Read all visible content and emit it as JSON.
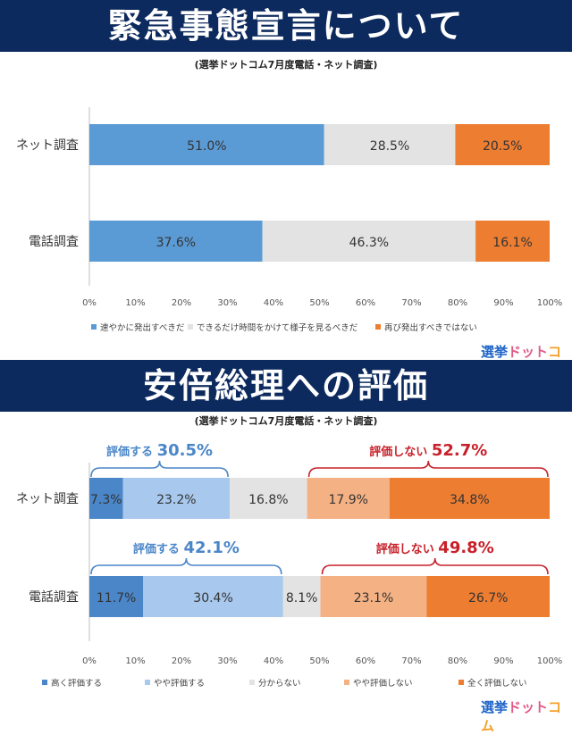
{
  "chart1": {
    "banner_title": "緊急事態宣言について",
    "subtitle": "(選挙ドットコム7月度電話・ネット調査)",
    "chart_data": {
      "type": "bar",
      "stacked": true,
      "orientation": "horizontal",
      "categories": [
        "ネット調査",
        "電話調査"
      ],
      "series": [
        {
          "name": "速やかに発出すべきだ",
          "color": "#5b9bd5",
          "values": [
            51.0,
            37.6
          ]
        },
        {
          "name": "できるだけ時間をかけて様子を見るべきだ",
          "color": "#e3e3e3",
          "values": [
            28.5,
            46.3
          ]
        },
        {
          "name": "再び発出すべきではない",
          "color": "#ed7d31",
          "values": [
            20.5,
            16.1
          ]
        }
      ],
      "data_labels": [
        [
          "51.0%",
          "28.5%",
          "20.5%"
        ],
        [
          "37.6%",
          "46.3%",
          "16.1%"
        ]
      ],
      "x_ticks": [
        "0%",
        "10%",
        "20%",
        "30%",
        "40%",
        "50%",
        "60%",
        "70%",
        "80%",
        "90%",
        "100%"
      ],
      "xlim": [
        0,
        100
      ],
      "legend_position": "bottom"
    }
  },
  "chart2": {
    "banner_title": "安倍総理への評価",
    "subtitle": "(選挙ドットコム7月度電話・ネット調査)",
    "chart_data": {
      "type": "bar",
      "stacked": true,
      "orientation": "horizontal",
      "categories": [
        "ネット調査",
        "電話調査"
      ],
      "series": [
        {
          "name": "高く評価する",
          "color": "#4a86c8",
          "values": [
            7.3,
            11.7
          ]
        },
        {
          "name": "やや評価する",
          "color": "#a8c8ee",
          "values": [
            23.2,
            30.4
          ]
        },
        {
          "name": "分からない",
          "color": "#e3e3e3",
          "values": [
            16.8,
            8.1
          ]
        },
        {
          "name": "やや評価しない",
          "color": "#f4b183",
          "values": [
            17.9,
            23.1
          ]
        },
        {
          "name": "全く評価しない",
          "color": "#ed7d31",
          "values": [
            34.8,
            26.7
          ]
        }
      ],
      "data_labels": [
        [
          "7.3%",
          "23.2%",
          "16.8%",
          "17.9%",
          "34.8%"
        ],
        [
          "11.7%",
          "30.4%",
          "8.1%",
          "23.1%",
          "26.7%"
        ]
      ],
      "x_ticks": [
        "0%",
        "10%",
        "20%",
        "30%",
        "40%",
        "50%",
        "60%",
        "70%",
        "80%",
        "90%",
        "100%"
      ],
      "xlim": [
        0,
        100
      ],
      "legend_position": "bottom",
      "annotations": [
        {
          "label": "評価する",
          "value": "30.5%",
          "color": "#4a86c8",
          "row": 0,
          "from": 0,
          "to": 30.5
        },
        {
          "label": "評価しない",
          "value": "52.7%",
          "color": "#c8202a",
          "row": 0,
          "from": 47.3,
          "to": 100
        },
        {
          "label": "評価する",
          "value": "42.1%",
          "color": "#4a86c8",
          "row": 1,
          "from": 0,
          "to": 42.1
        },
        {
          "label": "評価しない",
          "value": "49.8%",
          "color": "#c8202a",
          "row": 1,
          "from": 50.2,
          "to": 100
        }
      ]
    }
  },
  "logo": {
    "part1": "選挙",
    "part2": "ドット",
    "part3": "コム"
  }
}
